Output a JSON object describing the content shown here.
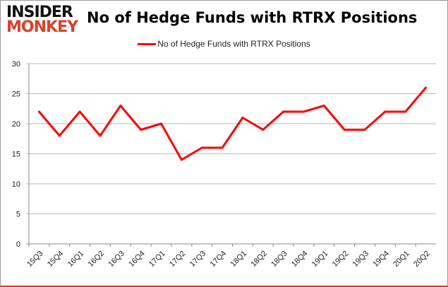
{
  "logo": {
    "line1": "INSIDER",
    "line2": "MONKEY"
  },
  "chart_data": {
    "type": "line",
    "title": "No of Hedge Funds with RTRX Positions",
    "categories": [
      "15Q3",
      "15Q4",
      "16Q1",
      "16Q2",
      "16Q3",
      "16Q4",
      "17Q1",
      "17Q2",
      "17Q3",
      "17Q4",
      "18Q1",
      "18Q2",
      "18Q3",
      "18Q4",
      "19Q1",
      "19Q2",
      "19Q3",
      "19Q4",
      "20Q1",
      "20Q2"
    ],
    "series": [
      {
        "name": "No of Hedge Funds with RTRX Positions",
        "color": "#ff0000",
        "values": [
          22,
          18,
          22,
          18,
          23,
          19,
          20,
          14,
          16,
          16,
          21,
          19,
          22,
          22,
          23,
          19,
          19,
          22,
          22,
          26
        ]
      }
    ],
    "ylim": [
      0,
      30
    ],
    "yticks": [
      0,
      5,
      10,
      15,
      20,
      25,
      30
    ],
    "grid": true,
    "legend": "top-center"
  }
}
